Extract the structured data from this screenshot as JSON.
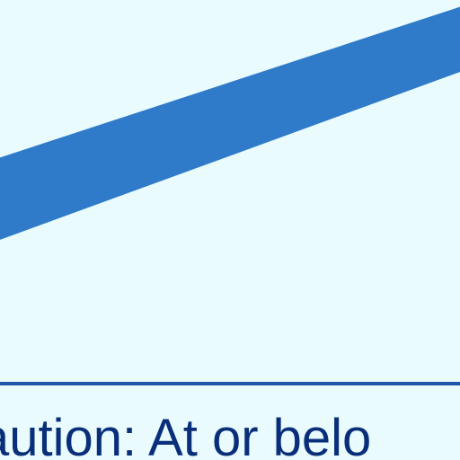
{
  "caution_text": "aution: At or belo",
  "colors": {
    "background": "#e9fbfd",
    "band": "#2f7ac9",
    "axis": "#1e56a8",
    "text": "#0a2f7a"
  },
  "chart_data": {
    "type": "line",
    "title": "",
    "xlabel": "",
    "ylabel": "",
    "grid": false,
    "legend": "none",
    "x": [
      0,
      1
    ],
    "series": [
      {
        "name": "",
        "lower": [
          0.42,
          0.91
        ],
        "upper": [
          0.66,
          1.1
        ],
        "color": "#2f7ac9"
      }
    ],
    "xlim": [
      0,
      1
    ],
    "ylim": [
      0,
      1.12
    ]
  }
}
